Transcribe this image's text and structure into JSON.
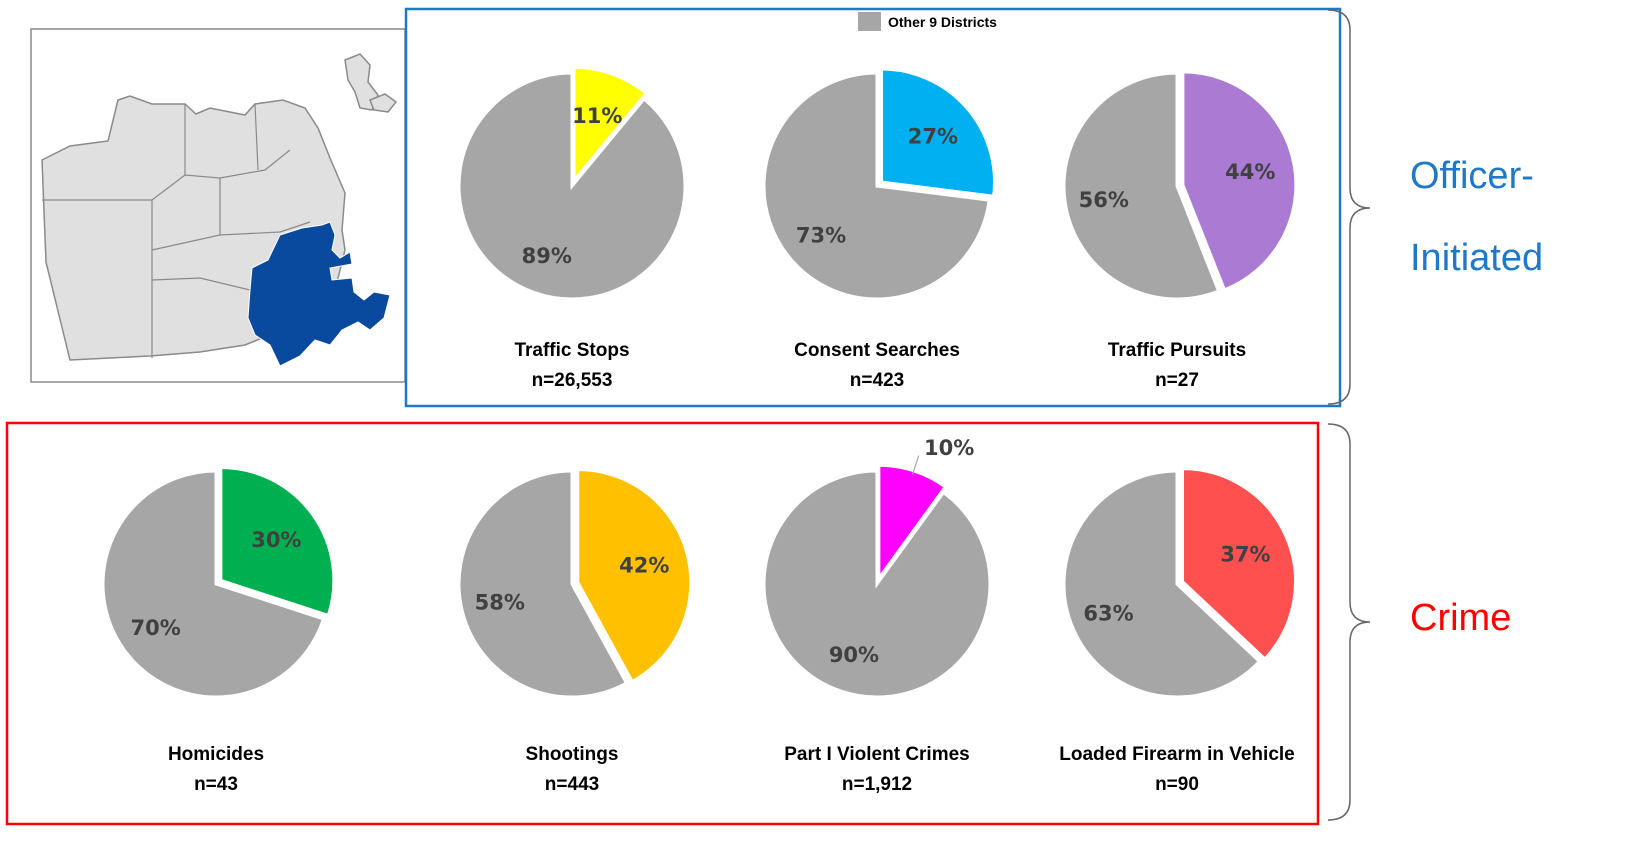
{
  "legend": {
    "label": "Other 9 Districts",
    "color": "#a6a6a6"
  },
  "groups": {
    "officer": {
      "label_line1": "Officer-",
      "label_line2": "Initiated",
      "color": "#1f78c8"
    },
    "crime": {
      "label": "Crime",
      "color": "#ff0000"
    }
  },
  "map": {
    "highlight_color": "#0a4a9e",
    "district_fill": "#e0e0e0",
    "outline_color": "#8a8a8a"
  },
  "chart_data": [
    {
      "type": "pie",
      "group": "officer",
      "title": "Traffic Stops",
      "subtitle": "n=26,553",
      "slices": [
        {
          "label": "11%",
          "value": 11,
          "color": "#ffff00"
        },
        {
          "label": "89%",
          "value": 89,
          "color": "#a6a6a6"
        }
      ]
    },
    {
      "type": "pie",
      "group": "officer",
      "title": "Consent Searches",
      "subtitle": "n=423",
      "slices": [
        {
          "label": "27%",
          "value": 27,
          "color": "#00b0f0"
        },
        {
          "label": "73%",
          "value": 73,
          "color": "#a6a6a6"
        }
      ]
    },
    {
      "type": "pie",
      "group": "officer",
      "title": "Traffic Pursuits",
      "subtitle": "n=27",
      "slices": [
        {
          "label": "44%",
          "value": 44,
          "color": "#ab7ad3"
        },
        {
          "label": "56%",
          "value": 56,
          "color": "#a6a6a6"
        }
      ]
    },
    {
      "type": "pie",
      "group": "crime",
      "title": "Homicides",
      "subtitle": "n=43",
      "slices": [
        {
          "label": "30%",
          "value": 30,
          "color": "#00b050"
        },
        {
          "label": "70%",
          "value": 70,
          "color": "#a6a6a6"
        }
      ]
    },
    {
      "type": "pie",
      "group": "crime",
      "title": "Shootings",
      "subtitle": "n=443",
      "slices": [
        {
          "label": "42%",
          "value": 42,
          "color": "#ffc000"
        },
        {
          "label": "58%",
          "value": 58,
          "color": "#a6a6a6"
        }
      ]
    },
    {
      "type": "pie",
      "group": "crime",
      "title": "Part I Violent Crimes",
      "subtitle": "n=1,912",
      "slices": [
        {
          "label": "10%",
          "value": 10,
          "color": "#ff00ff"
        },
        {
          "label": "90%",
          "value": 90,
          "color": "#a6a6a6"
        }
      ]
    },
    {
      "type": "pie",
      "group": "crime",
      "title": "Loaded Firearm in Vehicle",
      "subtitle": "n=90",
      "slices": [
        {
          "label": "37%",
          "value": 37,
          "color": "#ff5050"
        },
        {
          "label": "63%",
          "value": 63,
          "color": "#a6a6a6"
        }
      ]
    }
  ]
}
